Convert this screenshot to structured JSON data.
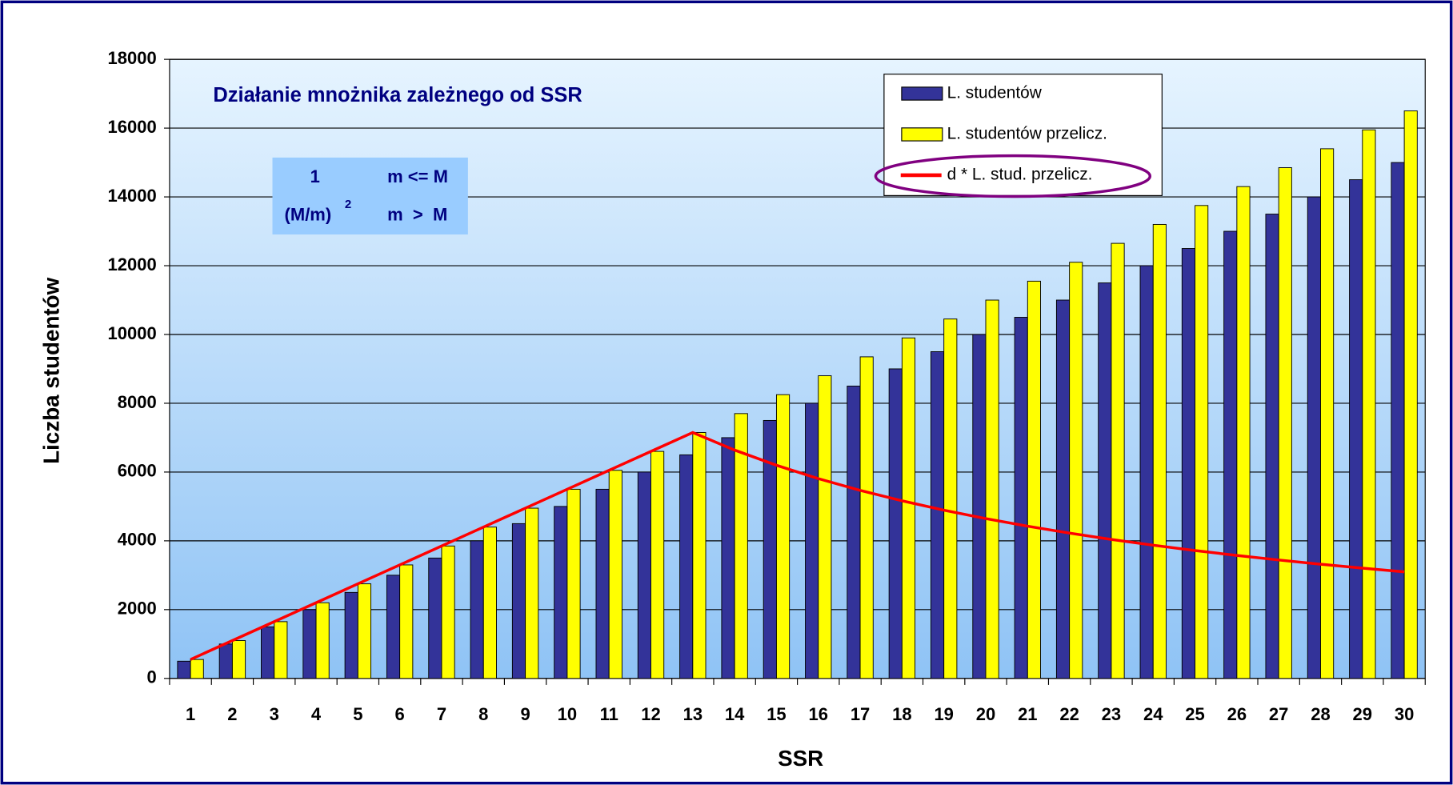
{
  "chart_data": {
    "type": "bar",
    "title": "Działanie mnożnika zależnego od SSR",
    "x_label": "SSR",
    "y_label": "Liczba studentów",
    "formula": [
      {
        "value": "1",
        "condition": "m <= M"
      },
      {
        "value": "(M/m)",
        "exponent": "2",
        "condition": "m  >  M"
      }
    ],
    "categories": [
      "1",
      "2",
      "3",
      "4",
      "5",
      "6",
      "7",
      "8",
      "9",
      "10",
      "11",
      "12",
      "13",
      "14",
      "15",
      "16",
      "17",
      "18",
      "19",
      "20",
      "21",
      "22",
      "23",
      "24",
      "25",
      "26",
      "27",
      "28",
      "29",
      "30"
    ],
    "series": [
      {
        "name": "L. studentów",
        "type": "bar",
        "color": "#333399",
        "values": [
          500,
          1000,
          1500,
          2000,
          2500,
          3000,
          3500,
          4000,
          4500,
          5000,
          5500,
          6000,
          6500,
          7000,
          7500,
          8000,
          8500,
          9000,
          9500,
          10000,
          10500,
          11000,
          11500,
          12000,
          12500,
          13000,
          13500,
          14000,
          14500,
          15000
        ]
      },
      {
        "name": "L. studentów przelicz.",
        "type": "bar",
        "color": "#ffff00",
        "values": [
          550,
          1100,
          1650,
          2200,
          2750,
          3300,
          3850,
          4400,
          4950,
          5500,
          6050,
          6600,
          7150,
          7700,
          8250,
          8800,
          9350,
          9900,
          10450,
          11000,
          11550,
          12100,
          12650,
          13200,
          13750,
          14300,
          14850,
          15400,
          15950,
          16500
        ]
      },
      {
        "name": "d * L. stud. przelicz.",
        "type": "line",
        "color": "#ff0000",
        "values": [
          550,
          1100,
          1650,
          2200,
          2750,
          3300,
          3850,
          4400,
          4950,
          5500,
          6050,
          6600,
          7150,
          6639,
          6197,
          5809,
          5468,
          5164,
          4892,
          4648,
          4426,
          4225,
          4041,
          3873,
          3718,
          3575,
          3443,
          3320,
          3205,
          3098
        ]
      }
    ],
    "ylim": [
      0,
      18000
    ],
    "yticks": [
      0,
      2000,
      4000,
      6000,
      8000,
      10000,
      12000,
      14000,
      16000,
      18000
    ],
    "grid": true
  }
}
